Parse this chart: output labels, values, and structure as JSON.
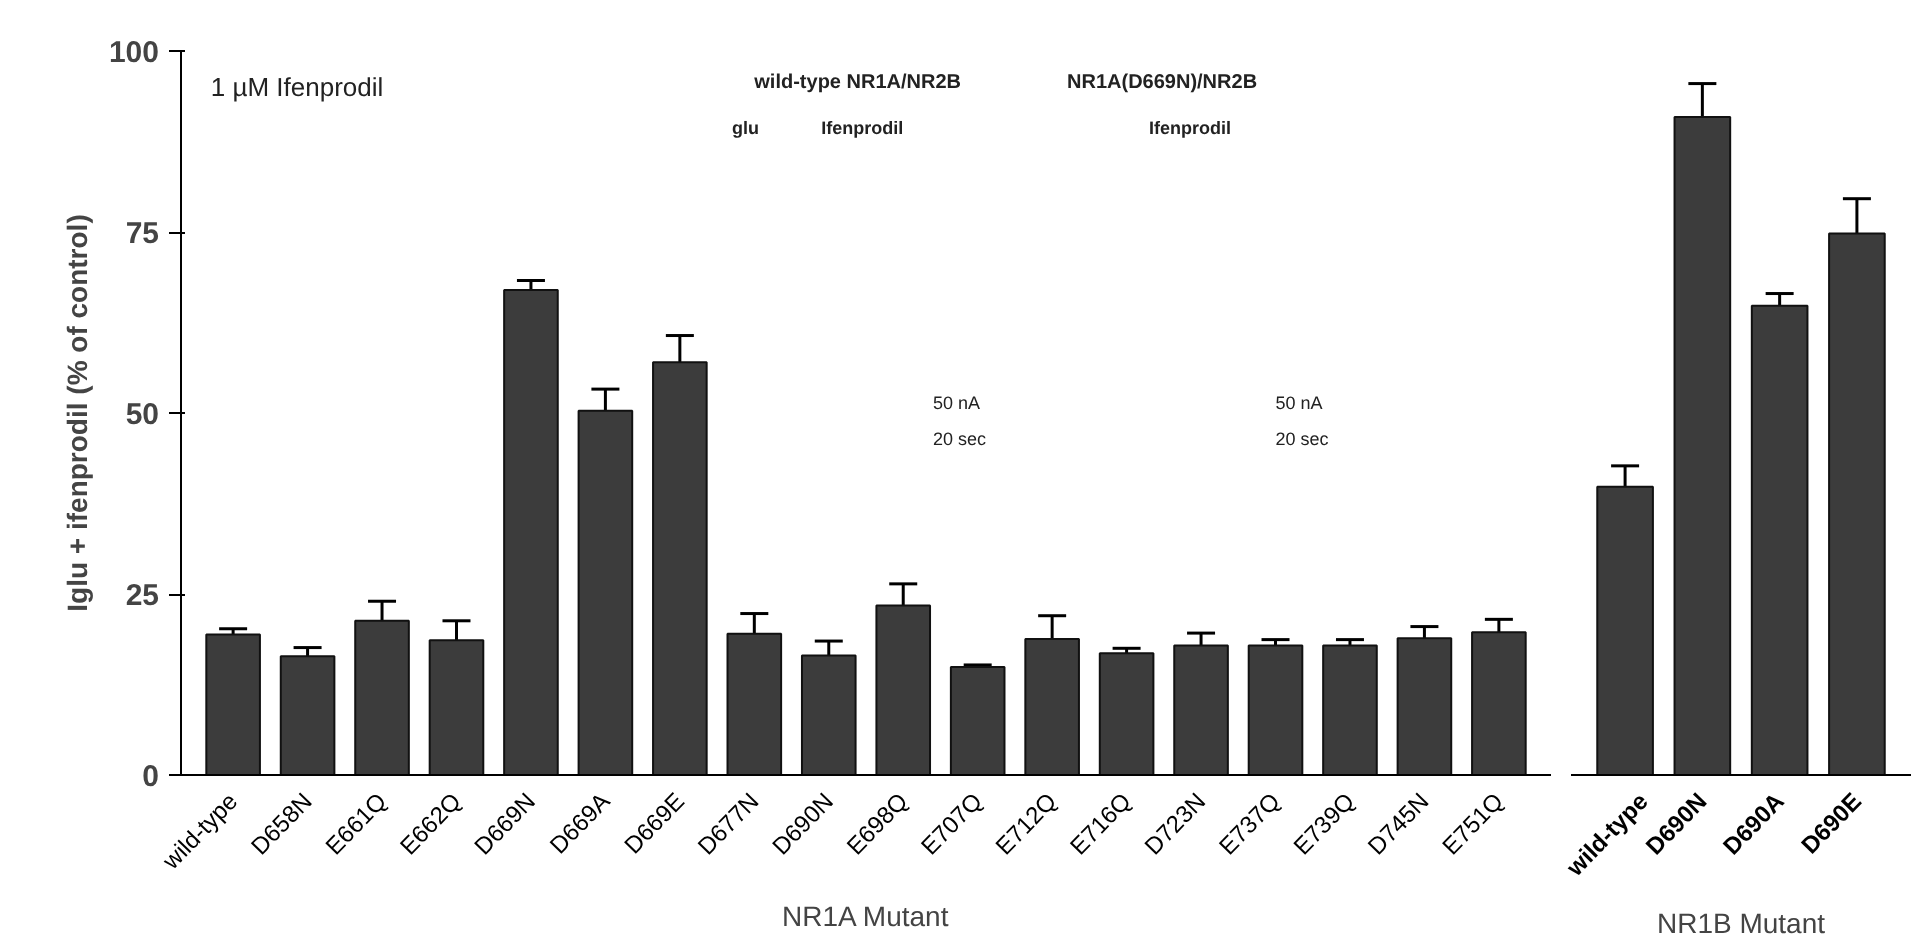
{
  "chart_data": [
    {
      "type": "bar",
      "ylabel": "Iglu + ifenprodil (% of control)",
      "xlabel": "NR1A Mutant",
      "categories": [
        "wild-type",
        "D658N",
        "E661Q",
        "E662Q",
        "D669N",
        "D669A",
        "D669E",
        "D677N",
        "D690N",
        "E698Q",
        "E707Q",
        "E712Q",
        "E716Q",
        "D723N",
        "E737Q",
        "E739Q",
        "D745N",
        "E751Q"
      ],
      "values": [
        19.4,
        16.4,
        21.3,
        18.6,
        67.0,
        50.3,
        57.0,
        19.5,
        16.5,
        23.4,
        14.9,
        18.8,
        16.8,
        17.9,
        17.9,
        17.9,
        18.9,
        19.7
      ],
      "errors": [
        0.8,
        1.2,
        2.7,
        2.7,
        1.3,
        3.0,
        3.7,
        2.8,
        2.0,
        3.0,
        0.3,
        3.2,
        0.7,
        1.7,
        0.8,
        0.8,
        1.6,
        1.8
      ],
      "color": "#3c3c3c",
      "ylim": [
        0,
        100
      ],
      "yticks": [
        0,
        25,
        50,
        75,
        100
      ],
      "grid": false,
      "annotations": [
        "1 µM Ifenprodil",
        "wild-type NR1A/NR2B",
        "glu",
        "Ifenprodil",
        "50 nA",
        "20 sec",
        "NR1A(D669N)/NR2B",
        "Ifenprodil",
        "50 nA",
        "20 sec"
      ]
    },
    {
      "type": "bar",
      "xlabel": "NR1B Mutant",
      "categories": [
        "wild-type",
        "D690N",
        "D690A",
        "D690E"
      ],
      "values": [
        39.8,
        90.9,
        64.8,
        74.8
      ],
      "errors": [
        2.9,
        4.6,
        1.7,
        4.8
      ],
      "color": "#3c3c3c",
      "ylim": [
        0,
        100
      ],
      "grid": false,
      "tick_labels": "x"
    }
  ]
}
